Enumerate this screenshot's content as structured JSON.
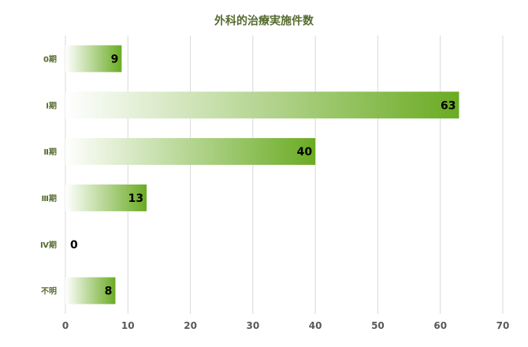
{
  "chart_data": {
    "type": "bar",
    "orientation": "horizontal",
    "title": "外科的治療実施件数",
    "categories": [
      "0期",
      "Ⅰ期",
      "Ⅱ期",
      "Ⅲ期",
      "Ⅳ期",
      "不明"
    ],
    "values": [
      9,
      63,
      40,
      13,
      0,
      8
    ],
    "xlim": [
      0,
      70
    ],
    "xticks": [
      0,
      10,
      20,
      30,
      40,
      50,
      60,
      70
    ],
    "grid": "vertical",
    "legend": "none",
    "colors": {
      "bar_start": "#ffffff",
      "bar_end": "#6aab23",
      "category_label": "#556b2f",
      "tick_label": "#595959",
      "gridline": "#d9d9d9",
      "value_label": "#000000"
    }
  }
}
